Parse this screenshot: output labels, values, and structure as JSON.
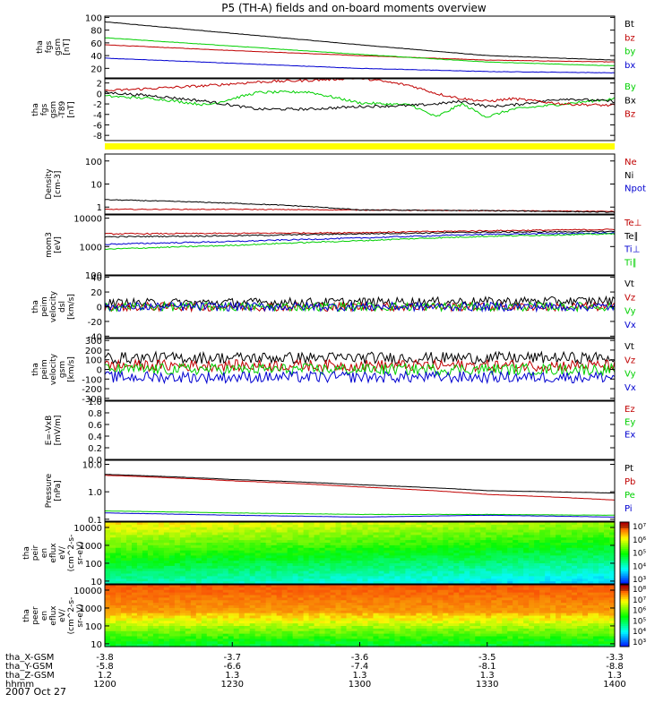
{
  "title": "P5 (TH-A) fields and on-board moments overview",
  "date_label": "2007 Oct 27",
  "xaxis": {
    "rows": [
      {
        "label": "tha_X-GSM",
        "values": [
          "-3.8",
          "-3.7",
          "-3.6",
          "-3.5",
          "-3.3"
        ]
      },
      {
        "label": "tha_Y-GSM",
        "values": [
          "-5.8",
          "-6.6",
          "-7.4",
          "-8.1",
          "-8.8"
        ]
      },
      {
        "label": "tha_Z-GSM",
        "values": [
          "1.2",
          "1.3",
          "1.3",
          "1.3",
          "1.3"
        ]
      },
      {
        "label": "hhmm",
        "values": [
          "1200",
          "1230",
          "1300",
          "1330",
          "1400"
        ]
      }
    ]
  },
  "colors": {
    "black": "#000000",
    "red": "#c00000",
    "green": "#00d000",
    "blue": "#0000d0",
    "yellow": "#ffff00"
  },
  "chart_data": [
    {
      "id": "fgs",
      "type": "line",
      "ylabel": "tha\nfgs\ngsm\n[nT]",
      "ticks": [
        "100",
        "80",
        "60",
        "40",
        "20"
      ],
      "tick_values": [
        100,
        80,
        60,
        40,
        20
      ],
      "ylim": [
        5,
        102
      ],
      "scale": "linear",
      "series": [
        {
          "name": "Bt",
          "color": "#000000",
          "x": [
            0,
            0.25,
            0.5,
            0.75,
            1
          ],
          "y": [
            93,
            75,
            57,
            40,
            33
          ]
        },
        {
          "name": "bz",
          "color": "#c00000",
          "x": [
            0,
            0.25,
            0.5,
            0.75,
            1
          ],
          "y": [
            57,
            48,
            40,
            33,
            30
          ]
        },
        {
          "name": "by",
          "color": "#00d000",
          "x": [
            0,
            0.25,
            0.5,
            0.75,
            1
          ],
          "y": [
            68,
            55,
            42,
            30,
            24
          ]
        },
        {
          "name": "bx",
          "color": "#0000d0",
          "x": [
            0,
            0.25,
            0.5,
            0.75,
            1
          ],
          "y": [
            36,
            28,
            20,
            15,
            13
          ]
        }
      ]
    },
    {
      "id": "fgs-dB",
      "type": "line",
      "ylabel": "tha\nfgs\ngsm\n-T89\n[nT]",
      "ticks": [
        "2",
        "0",
        "-2",
        "-4",
        "-6",
        "-8"
      ],
      "tick_values": [
        2,
        0,
        -2,
        -4,
        -6,
        -8
      ],
      "ylim": [
        -9,
        2.8
      ],
      "scale": "linear",
      "series": [
        {
          "name": "By",
          "color": "#00d000",
          "x": [
            0,
            0.1,
            0.2,
            0.3,
            0.4,
            0.5,
            0.6,
            0.65,
            0.7,
            0.75,
            0.8,
            0.9,
            1
          ],
          "y": [
            -0.5,
            -1,
            -2.2,
            0.2,
            0.3,
            -1.8,
            -2.2,
            -4.5,
            -2,
            -4.5,
            -3,
            -2,
            -1
          ]
        },
        {
          "name": "Bx",
          "color": "#000000",
          "x": [
            0,
            0.1,
            0.2,
            0.3,
            0.4,
            0.5,
            0.6,
            0.65,
            0.7,
            0.75,
            0.8,
            0.9,
            1
          ],
          "y": [
            0.2,
            -0.5,
            -1.5,
            -3,
            -3,
            -2.5,
            -2.3,
            -2,
            -1.5,
            -2.5,
            -2.2,
            -1,
            -1.5
          ]
        },
        {
          "name": "Bz",
          "color": "#c00000",
          "x": [
            0,
            0.1,
            0.2,
            0.3,
            0.4,
            0.5,
            0.6,
            0.65,
            0.7,
            0.75,
            0.8,
            0.9,
            1
          ],
          "y": [
            0.5,
            1,
            1.5,
            2.2,
            2.5,
            3,
            1.5,
            0,
            -1,
            -1.5,
            -1,
            -2,
            -2.3
          ]
        }
      ]
    },
    {
      "id": "density",
      "type": "line",
      "ylabel": "Density\n[cm-3]",
      "ticks": [
        "100",
        "10",
        "1"
      ],
      "tick_values": [
        100,
        10,
        1
      ],
      "ylim": [
        0.5,
        200
      ],
      "scale": "log",
      "series": [
        {
          "name": "Ne",
          "color": "#c00000",
          "x": [
            0,
            0.25,
            0.5,
            0.75,
            1
          ],
          "y": [
            0.8,
            0.8,
            0.75,
            0.7,
            0.65
          ]
        },
        {
          "name": "Ni",
          "color": "#000000",
          "x": [
            0,
            0.2,
            0.35,
            0.5,
            0.75,
            1
          ],
          "y": [
            2.1,
            1.6,
            1.2,
            0.75,
            0.7,
            0.6
          ]
        },
        {
          "name": "Npot",
          "color": "#0000d0",
          "x": [],
          "y": []
        }
      ]
    },
    {
      "id": "temp",
      "type": "line",
      "ylabel": "mom3\n[eV]",
      "ticks": [
        "10000",
        "1000",
        "100"
      ],
      "tick_values": [
        10000,
        1000,
        100
      ],
      "ylim": [
        100,
        13000
      ],
      "scale": "log",
      "series": [
        {
          "name": "Te⊥",
          "color": "#c00000",
          "x": [
            0,
            0.25,
            0.5,
            0.75,
            1
          ],
          "y": [
            2800,
            2900,
            3100,
            3600,
            4000
          ]
        },
        {
          "name": "Te∥",
          "color": "#000000",
          "x": [
            0,
            0.25,
            0.5,
            0.75,
            1
          ],
          "y": [
            2200,
            2400,
            2800,
            3200,
            3400
          ]
        },
        {
          "name": "Ti⊥",
          "color": "#0000d0",
          "x": [
            0,
            0.25,
            0.5,
            0.75,
            1
          ],
          "y": [
            1200,
            1500,
            2000,
            2700,
            3000
          ]
        },
        {
          "name": "Ti∥",
          "color": "#00d000",
          "x": [
            0,
            0.25,
            0.5,
            0.75,
            1
          ],
          "y": [
            800,
            1100,
            1600,
            2300,
            2800
          ]
        }
      ]
    },
    {
      "id": "peim-dsl",
      "type": "line",
      "ylabel": "tha\npeim\nvelocity\ndsl\n[km/s]",
      "ticks": [
        "40",
        "20",
        "0",
        "-20",
        "-40"
      ],
      "tick_values": [
        40,
        20,
        0,
        -20,
        -40
      ],
      "ylim": [
        -42,
        42
      ],
      "scale": "linear",
      "series": [
        {
          "name": "Vt",
          "color": "#000000",
          "x": [
            0,
            1
          ],
          "y": [
            5,
            8
          ]
        },
        {
          "name": "Vz",
          "color": "#c00000",
          "x": [
            0,
            1
          ],
          "y": [
            0,
            0
          ]
        },
        {
          "name": "Vy",
          "color": "#00d000",
          "x": [
            0,
            1
          ],
          "y": [
            0,
            0
          ]
        },
        {
          "name": "Vx",
          "color": "#0000d0",
          "x": [
            0,
            1
          ],
          "y": [
            0,
            0
          ]
        }
      ]
    },
    {
      "id": "peim-gsm",
      "type": "line",
      "ylabel": "tha\npeim\nvelocity\ngsm\n[km/s]",
      "ticks": [
        "300",
        "200",
        "100",
        "0",
        "-100",
        "-200",
        "-300"
      ],
      "tick_values": [
        300,
        200,
        100,
        0,
        -100,
        -200,
        -300
      ],
      "ylim": [
        -320,
        320
      ],
      "scale": "linear",
      "series": [
        {
          "name": "Vt",
          "color": "#000000",
          "x": [
            0,
            1
          ],
          "y": [
            120,
            120
          ]
        },
        {
          "name": "Vz",
          "color": "#c00000",
          "x": [
            0,
            1
          ],
          "y": [
            40,
            40
          ]
        },
        {
          "name": "Vy",
          "color": "#00d000",
          "x": [
            0,
            1
          ],
          "y": [
            0,
            0
          ]
        },
        {
          "name": "Vx",
          "color": "#0000d0",
          "x": [
            0,
            1
          ],
          "y": [
            -80,
            -80
          ]
        }
      ]
    },
    {
      "id": "efield",
      "type": "line",
      "ylabel": "E=-VxB\n[mV/m]",
      "ticks": [
        "1.0",
        "0.8",
        "0.6",
        "0.4",
        "0.2",
        "0.0"
      ],
      "tick_values": [
        1.0,
        0.8,
        0.6,
        0.4,
        0.2,
        0.0
      ],
      "ylim": [
        0,
        1
      ],
      "scale": "linear",
      "series": [
        {
          "name": "Ez",
          "color": "#c00000",
          "x": [],
          "y": []
        },
        {
          "name": "Ey",
          "color": "#00d000",
          "x": [],
          "y": []
        },
        {
          "name": "Ex",
          "color": "#0000d0",
          "x": [],
          "y": []
        }
      ]
    },
    {
      "id": "pressure",
      "type": "line",
      "ylabel": "Pressure\n[nPa]",
      "ticks": [
        "10.0",
        "1.0",
        "0.1"
      ],
      "tick_values": [
        10,
        1,
        0.1
      ],
      "ylim": [
        0.085,
        14
      ],
      "scale": "log",
      "series": [
        {
          "name": "Pt",
          "color": "#000000",
          "x": [
            0,
            0.25,
            0.5,
            0.75,
            1
          ],
          "y": [
            4.3,
            2.8,
            1.8,
            1.1,
            0.9
          ]
        },
        {
          "name": "Pb",
          "color": "#c00000",
          "x": [
            0,
            0.25,
            0.5,
            0.75,
            1
          ],
          "y": [
            4,
            2.5,
            1.5,
            0.8,
            0.5
          ]
        },
        {
          "name": "Pe",
          "color": "#00d000",
          "x": [
            0,
            0.25,
            0.5,
            0.75,
            1
          ],
          "y": [
            0.2,
            0.17,
            0.15,
            0.15,
            0.14
          ]
        },
        {
          "name": "Pi",
          "color": "#0000d0",
          "x": [
            0,
            0.25,
            0.5,
            0.75,
            1
          ],
          "y": [
            0.17,
            0.14,
            0.12,
            0.14,
            0.12
          ]
        }
      ]
    },
    {
      "id": "peir",
      "type": "heatmap",
      "ylabel": "tha\npeir\nen\neflux\neV/\n(cm^2-s-\nsr-eV)",
      "ticks": [
        "10000",
        "1000",
        "100",
        "10"
      ],
      "tick_values": [
        10000,
        1000,
        100,
        10
      ],
      "ylim": [
        7,
        20000
      ],
      "scale": "log",
      "colorbar": {
        "labels": [
          "10⁷",
          "10⁶",
          "10⁵",
          "10⁴",
          "10³"
        ]
      }
    },
    {
      "id": "peer",
      "type": "heatmap",
      "ylabel": "tha\npeer\nen\neflux\neV/\n(cm^2-s-\nsr-eV)",
      "ticks": [
        "10000",
        "1000",
        "100",
        "10"
      ],
      "tick_values": [
        10000,
        1000,
        100,
        10
      ],
      "ylim": [
        7,
        20000
      ],
      "scale": "log",
      "colorbar": {
        "labels": [
          "10⁸",
          "10⁷",
          "10⁶",
          "10⁵",
          "10⁴",
          "10³"
        ]
      }
    }
  ]
}
